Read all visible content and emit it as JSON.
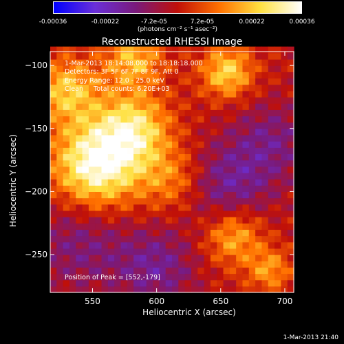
{
  "colorbar": {
    "tick_labels": [
      "-0.00036",
      "-0.00022",
      "-7.2e-05",
      "7.2e-05",
      "0.00022",
      "0.00036"
    ],
    "unit": "(photons cm⁻² s⁻¹ asec⁻²)",
    "colors": [
      "#0000ff",
      "#6a2fd8",
      "#7a1a7a",
      "#c01008",
      "#ff7000",
      "#ffe040",
      "#ffffff"
    ]
  },
  "chart_data": {
    "type": "heatmap",
    "title": "Reconstructed RHESSI Image",
    "xlabel": "Heliocentric X (arcsec)",
    "ylabel": "Heliocentric Y (arcsec)",
    "xlim": [
      517,
      707
    ],
    "ylim": [
      -280,
      -89
    ],
    "xticks": [
      550,
      600,
      650,
      700
    ],
    "yticks": [
      -100,
      -150,
      -200,
      -250
    ],
    "zlim": [
      -0.00036,
      0.00036
    ],
    "annotations": {
      "time_range": "1-Mar-2013 18:14:08.000 to 18:18:18.000",
      "detectors": "Detectors: 3F 5F 6F 7F 8F 9F, Att 0",
      "energy_range": "Energy Range: 12.0 - 25.0 keV",
      "clean": "Clean     Total counts: 6.20E+03",
      "peak": "Position of Peak = [552,-179]"
    },
    "sources": [
      {
        "x": 553,
        "y": -179,
        "amp": 0.00036,
        "sigma": 24
      },
      {
        "x": 582,
        "y": -150,
        "amp": 0.00025,
        "sigma": 20
      },
      {
        "x": 530,
        "y": -120,
        "amp": 0.00022,
        "sigma": 18
      },
      {
        "x": 582,
        "y": -95,
        "amp": 0.0002,
        "sigma": 16
      },
      {
        "x": 655,
        "y": -105,
        "amp": 0.00024,
        "sigma": 14
      },
      {
        "x": 612,
        "y": -190,
        "amp": 0.00014,
        "sigma": 18
      },
      {
        "x": 660,
        "y": -235,
        "amp": 0.0002,
        "sigma": 16
      },
      {
        "x": 688,
        "y": -262,
        "amp": 0.00016,
        "sigma": 12
      },
      {
        "x": 540,
        "y": -240,
        "amp": -0.00012,
        "sigma": 28
      },
      {
        "x": 655,
        "y": -195,
        "amp": -0.00015,
        "sigma": 24
      },
      {
        "x": 600,
        "y": -260,
        "amp": -0.00014,
        "sigma": 22
      },
      {
        "x": 690,
        "y": -160,
        "amp": -0.00012,
        "sigma": 22
      }
    ]
  },
  "timestamp": "1-Mar-2013 21:40"
}
